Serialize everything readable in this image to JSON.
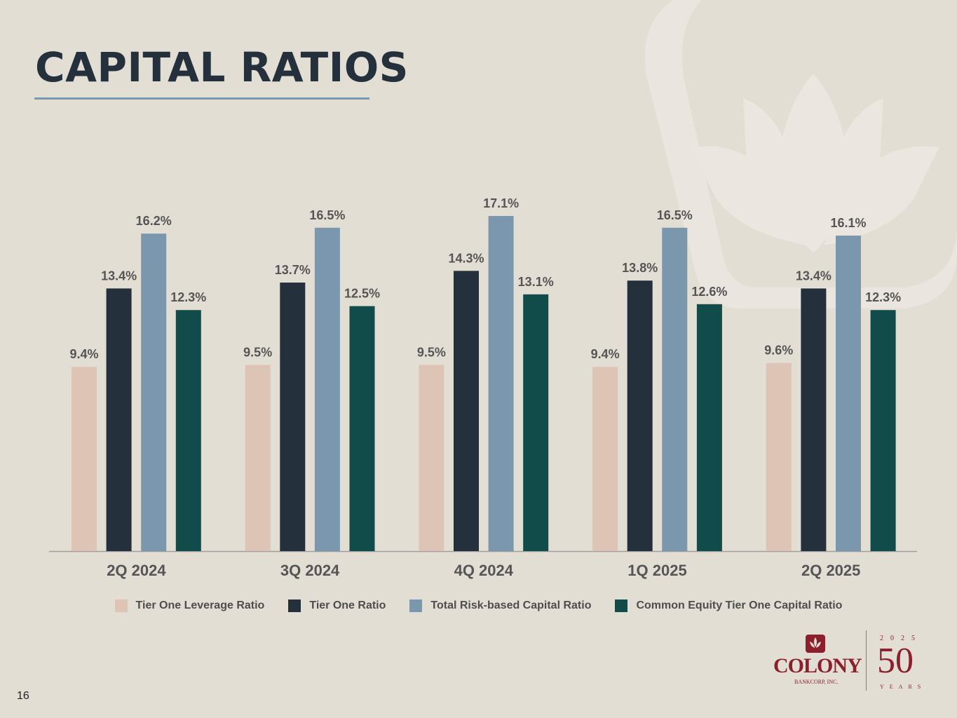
{
  "page": {
    "title": "CAPITAL RATIOS",
    "page_number": "16"
  },
  "colors": {
    "background": "#e3ded4",
    "title": "#24313d",
    "tier_one_leverage": "#dec4b5",
    "tier_one": "#24313d",
    "total_risk_based": "#7a97ae",
    "cet1": "#114b4a"
  },
  "chart_data": {
    "type": "bar",
    "title": "",
    "xlabel": "",
    "ylabel": "",
    "ylim": [
      0,
      20
    ],
    "grid": false,
    "legend_position": "bottom",
    "categories": [
      "2Q 2024",
      "3Q 2024",
      "4Q 2024",
      "1Q 2025",
      "2Q 2025"
    ],
    "series": [
      {
        "name": "Tier One Leverage Ratio",
        "color": "#dec4b5",
        "values": [
          9.4,
          9.5,
          9.5,
          9.4,
          9.6
        ],
        "labels": [
          "9.4%",
          "9.5%",
          "9.5%",
          "9.4%",
          "9.6%"
        ]
      },
      {
        "name": "Tier One Ratio",
        "color": "#24313d",
        "values": [
          13.4,
          13.7,
          14.3,
          13.8,
          13.4
        ],
        "labels": [
          "13.4%",
          "13.7%",
          "14.3%",
          "13.8%",
          "13.4%"
        ]
      },
      {
        "name": "Total Risk-based Capital Ratio",
        "color": "#7a97ae",
        "values": [
          16.2,
          16.5,
          17.1,
          16.5,
          16.1
        ],
        "labels": [
          "16.2%",
          "16.5%",
          "17.1%",
          "16.5%",
          "16.1%"
        ]
      },
      {
        "name": "Common Equity Tier One Capital Ratio",
        "color": "#114b4a",
        "values": [
          12.3,
          12.5,
          13.1,
          12.6,
          12.3
        ],
        "labels": [
          "12.3%",
          "12.5%",
          "13.1%",
          "12.6%",
          "12.3%"
        ]
      }
    ]
  },
  "logo": {
    "name": "COLONY",
    "sub": "BANKCORP, INC.",
    "anniversary_year": "2025",
    "anniversary_number": "50",
    "anniversary_label": "YEARS"
  }
}
